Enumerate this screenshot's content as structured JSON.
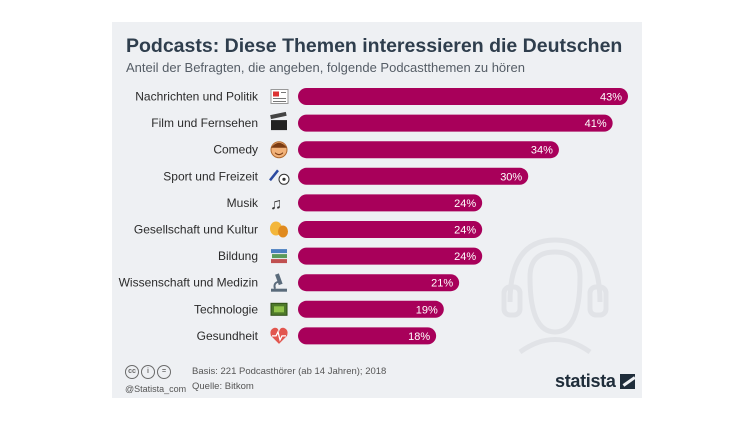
{
  "title": "Podcasts: Diese Themen interessieren die Deutschen",
  "subtitle": "Anteil der Befragten, die angeben, folgende Podcastthemen zu hören",
  "bar_color": "#a8005a",
  "chart_data": {
    "type": "bar",
    "orientation": "horizontal",
    "title": "Podcasts: Diese Themen interessieren die Deutschen",
    "subtitle": "Anteil der Befragten, die angeben, folgende Podcastthemen zu hören",
    "categories": [
      "Nachrichten und Politik",
      "Film und Fernsehen",
      "Comedy",
      "Sport und Freizeit",
      "Musik",
      "Gesellschaft und Kultur",
      "Bildung",
      "Wissenschaft und Medizin",
      "Technologie",
      "Gesundheit"
    ],
    "values": [
      43,
      41,
      34,
      30,
      24,
      24,
      24,
      21,
      19,
      18
    ],
    "value_labels": [
      "43%",
      "41%",
      "34%",
      "30%",
      "24%",
      "24%",
      "24%",
      "21%",
      "19%",
      "18%"
    ],
    "icons": [
      "newspaper-icon",
      "clapperboard-icon",
      "smiley-face-icon",
      "sports-icon",
      "music-notes-icon",
      "theater-masks-icon",
      "books-icon",
      "microscope-icon",
      "computer-chip-icon",
      "heart-pulse-icon"
    ],
    "unit": "%",
    "xlim": [
      0,
      43
    ]
  },
  "footer": {
    "handle": "@Statista_com",
    "basis": "Basis: 221 Podcasthörer (ab 14 Jahren); 2018",
    "source": "Quelle: Bitkom",
    "brand": "statista"
  }
}
